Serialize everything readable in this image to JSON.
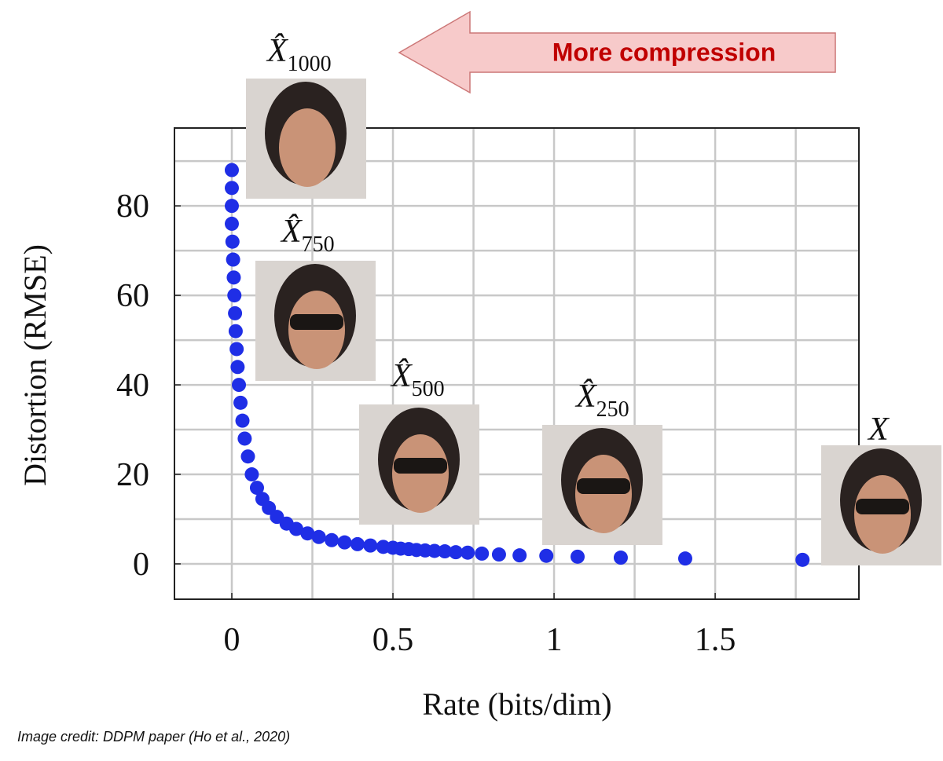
{
  "chart_data": {
    "type": "scatter",
    "xlabel": "Rate (bits/dim)",
    "ylabel": "Distortion (RMSE)",
    "x": [
      0,
      0,
      0,
      0,
      0.002,
      0.004,
      0.006,
      0.008,
      0.01,
      0.012,
      0.015,
      0.018,
      0.022,
      0.027,
      0.033,
      0.04,
      0.05,
      0.062,
      0.078,
      0.095,
      0.115,
      0.14,
      0.17,
      0.2,
      0.235,
      0.27,
      0.31,
      0.35,
      0.39,
      0.43,
      0.47,
      0.5,
      0.524,
      0.549,
      0.573,
      0.6,
      0.629,
      0.661,
      0.695,
      0.732,
      0.776,
      0.829,
      0.893,
      0.976,
      1.073,
      1.207,
      1.407,
      1.771
    ],
    "values": [
      88,
      84,
      80,
      76,
      72,
      68,
      64,
      60,
      56,
      52,
      48,
      44,
      40,
      36,
      32,
      28,
      24,
      20,
      17,
      14.5,
      12.5,
      10.5,
      9,
      7.8,
      6.8,
      6,
      5.3,
      4.8,
      4.4,
      4.1,
      3.8,
      3.6,
      3.4,
      3.3,
      3.1,
      3.0,
      2.9,
      2.8,
      2.6,
      2.5,
      2.3,
      2.1,
      1.9,
      1.8,
      1.6,
      1.4,
      1.2,
      0.9
    ],
    "color": "#1f2ee6",
    "xlim": [
      -0.178,
      1.946
    ],
    "ylim": [
      -7.9,
      97.4
    ],
    "xticks": [
      0,
      0.5,
      1,
      1.5
    ],
    "yticks": [
      0,
      20,
      40,
      60,
      80
    ],
    "xgrid": [
      0,
      0.25,
      0.5,
      0.75,
      1,
      1.25,
      1.5,
      1.75
    ],
    "ygrid": [
      0,
      10,
      20,
      30,
      40,
      50,
      60,
      70,
      80,
      90
    ],
    "grid": true,
    "arrow_text": "More compression",
    "image_labels": [
      {
        "symbol": "X̂",
        "subscript": "1000"
      },
      {
        "symbol": "X̂",
        "subscript": "750"
      },
      {
        "symbol": "X̂",
        "subscript": "500"
      },
      {
        "symbol": "X̂",
        "subscript": "250"
      },
      {
        "symbol": "X"
      }
    ],
    "credit": "Image credit: DDPM paper (Ho et al., 2020)"
  }
}
